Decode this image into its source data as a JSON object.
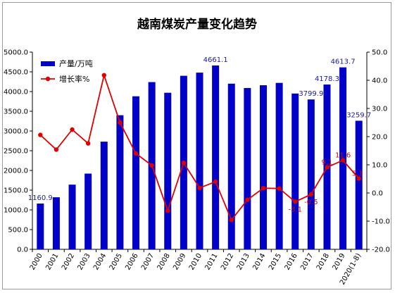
{
  "chart_data": {
    "type": "bar",
    "title": "越南煤炭产量变化趋势",
    "categories": [
      "2000",
      "2001",
      "2002",
      "2003",
      "2004",
      "2005",
      "2006",
      "2007",
      "2008",
      "2009",
      "2010",
      "2011",
      "2012",
      "2013",
      "2014",
      "2015",
      "2016",
      "2017",
      "2018",
      "2019",
      "2020(1-8)"
    ],
    "series": [
      {
        "name": "产量/万吨",
        "type": "bar",
        "axis": "left",
        "color": "#0000c8",
        "values": [
          1160.9,
          1320,
          1640,
          1920,
          2730,
          3400,
          3880,
          4240,
          3970,
          4400,
          4480,
          4661.1,
          4200,
          4090,
          4160,
          4220,
          3950,
          3799.9,
          4178.3,
          4613.7,
          3259.7
        ]
      },
      {
        "name": "增长率%",
        "type": "line",
        "axis": "right",
        "color": "#e00000",
        "values": [
          20.6,
          15.4,
          22.5,
          17.6,
          41.8,
          25,
          14,
          9.8,
          -6.3,
          10.7,
          1.8,
          4,
          -9.6,
          -2.4,
          1.7,
          1.6,
          -3.1,
          -0.5,
          9.1,
          11.6,
          5.1
        ]
      }
    ],
    "bar_labels": [
      {
        "index": 0,
        "text": "1160.9"
      },
      {
        "index": 11,
        "text": "4661.1"
      },
      {
        "index": 17,
        "text": "3799.9"
      },
      {
        "index": 18,
        "text": "4178.3"
      },
      {
        "index": 19,
        "text": "4613.7"
      },
      {
        "index": 20,
        "text": "3259.7"
      }
    ],
    "line_labels": [
      {
        "index": 16,
        "text": "-3.1"
      },
      {
        "index": 17,
        "text": "-0.5"
      },
      {
        "index": 18,
        "text": "9.1"
      },
      {
        "index": 19,
        "text": "11.6"
      },
      {
        "index": 20,
        "text": "5.1"
      }
    ],
    "ylim_left": [
      0,
      5000
    ],
    "ylim_right": [
      -20,
      50
    ],
    "left_ticks": [
      "0.0",
      "500.0",
      "1000.0",
      "1500.0",
      "2000.0",
      "2500.0",
      "3000.0",
      "3500.0",
      "4000.0",
      "4500.0",
      "5000.0"
    ],
    "right_ticks": [
      "-20.0",
      "-10.0",
      "0.0",
      "10.0",
      "20.0",
      "30.0",
      "40.0",
      "50.0"
    ],
    "grid": false,
    "legend_position": "top-left"
  }
}
